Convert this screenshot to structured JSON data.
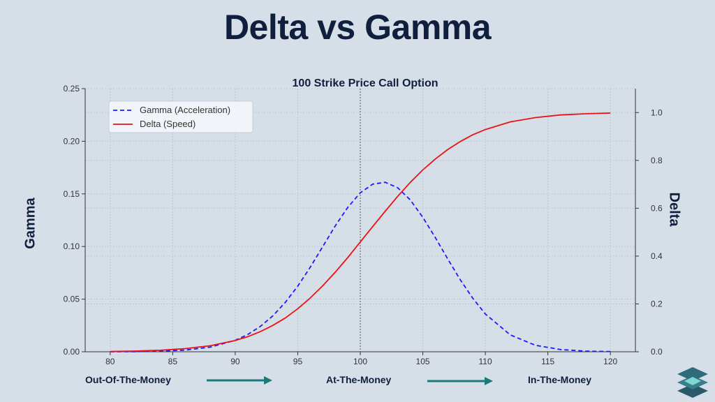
{
  "page": {
    "title": "Delta vs Gamma"
  },
  "colors": {
    "background": "#d6dee8",
    "title": "#0f1f3d",
    "gamma": "#1a1aff",
    "delta": "#ee1111",
    "arrow": "#1a7a7a",
    "logo_dark": "#2a5a6a",
    "logo_light": "#7dd8d0"
  },
  "moneyness": {
    "otm": "Out-Of-The-Money",
    "atm": "At-The-Money",
    "itm": "In-The-Money",
    "arrow_icon": "right-arrow-icon"
  },
  "logo": {
    "icon": "stacked-layers-logo-icon"
  },
  "chart_data": {
    "type": "line",
    "title": "100 Strike Price Call Option",
    "xlabel": "",
    "ylabel": "Gamma",
    "y2label": "Delta",
    "xlim": [
      78,
      122
    ],
    "ylim": [
      0,
      0.25
    ],
    "y2lim": [
      0,
      1.1
    ],
    "xticks": [
      80,
      85,
      90,
      95,
      100,
      105,
      110,
      115,
      120
    ],
    "xtick_labels": [
      "80",
      "85",
      "90",
      "95",
      "100",
      "105",
      "110",
      "115",
      "120"
    ],
    "yticks": [
      0,
      0.05,
      0.1,
      0.15,
      0.2,
      0.25
    ],
    "ytick_labels": [
      "0.00",
      "0.05",
      "0.10",
      "0.15",
      "0.20",
      "0.25"
    ],
    "y2ticks": [
      0,
      0.2,
      0.4,
      0.6,
      0.8,
      1.0
    ],
    "y2tick_labels": [
      "0.0",
      "0.2",
      "0.4",
      "0.6",
      "0.8",
      "1.0"
    ],
    "grid": true,
    "vline": 100,
    "legend_position": "top-left",
    "x": [
      80,
      82,
      84,
      86,
      88,
      90,
      91,
      92,
      93,
      94,
      95,
      96,
      97,
      98,
      99,
      100,
      101,
      102,
      103,
      104,
      105,
      106,
      107,
      108,
      109,
      110,
      112,
      114,
      116,
      118,
      120
    ],
    "series": [
      {
        "name": "Gamma (Acceleration)",
        "axis": "left",
        "style": "dashed",
        "values": [
          0.0,
          0.0001,
          0.0005,
          0.0016,
          0.0044,
          0.0109,
          0.0164,
          0.024,
          0.034,
          0.0468,
          0.0624,
          0.0804,
          0.1,
          0.1196,
          0.1372,
          0.151,
          0.1593,
          0.161,
          0.1558,
          0.1443,
          0.1278,
          0.1084,
          0.088,
          0.0683,
          0.0507,
          0.0359,
          0.016,
          0.0062,
          0.0021,
          0.0006,
          0.0002
        ]
      },
      {
        "name": "Delta (Speed)",
        "axis": "right",
        "style": "solid",
        "values": [
          0.001,
          0.003,
          0.006,
          0.013,
          0.025,
          0.047,
          0.063,
          0.084,
          0.11,
          0.141,
          0.18,
          0.225,
          0.276,
          0.333,
          0.394,
          0.459,
          0.524,
          0.588,
          0.65,
          0.708,
          0.76,
          0.806,
          0.846,
          0.879,
          0.907,
          0.929,
          0.961,
          0.979,
          0.99,
          0.995,
          0.998
        ]
      }
    ]
  }
}
